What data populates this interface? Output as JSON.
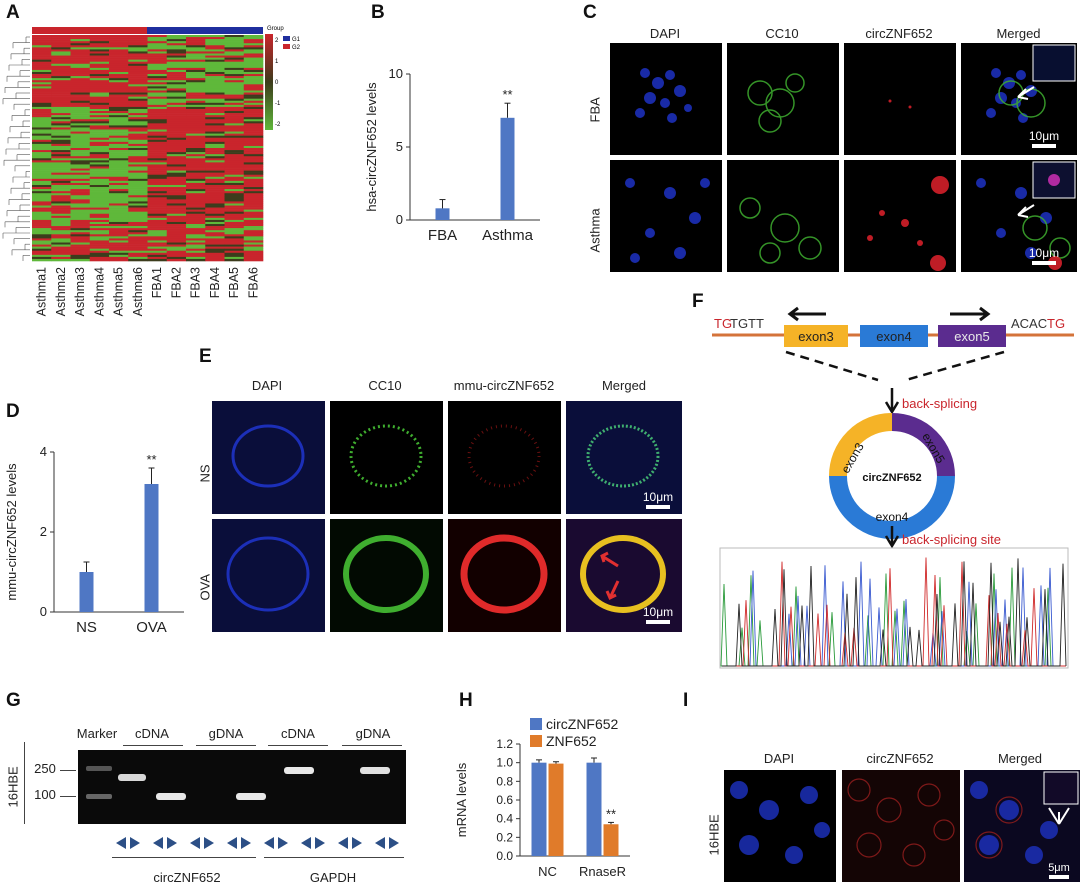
{
  "panels": {
    "A": "A",
    "B": "B",
    "C": "C",
    "D": "D",
    "E": "E",
    "F": "F",
    "G": "G",
    "H": "H",
    "I": "I"
  },
  "panelA": {
    "legend_title": "Group",
    "groups": [
      "G1",
      "G2"
    ],
    "colors": {
      "G1": "#1f2f9e",
      "G2": "#c9252c",
      "high": "#c9252c",
      "mid": "#3c3c1c",
      "low": "#5fb83a"
    },
    "scale_ticks": [
      "2",
      "1",
      "0",
      "-1",
      "-2"
    ],
    "samples": [
      "Asthma1",
      "Asthma2",
      "Asthma3",
      "Asthma4",
      "Asthma5",
      "Asthma6",
      "FBA1",
      "FBA2",
      "FBA3",
      "FBA4",
      "FBA5",
      "FBA6"
    ]
  },
  "panelC": {
    "headers": [
      "DAPI",
      "CC10",
      "circZNF652",
      "Merged"
    ],
    "rows": [
      "FBA",
      "Asthma"
    ],
    "scalebar": "10μm"
  },
  "panelE": {
    "headers": [
      "DAPI",
      "CC10",
      "mmu-circZNF652",
      "Merged"
    ],
    "rows": [
      "NS",
      "OVA"
    ],
    "scalebar": "10μm"
  },
  "panelF": {
    "left_seq_red": "TG",
    "left_seq_black": "TGTT",
    "right_seq_black": "ACAC",
    "right_seq_red": "TG",
    "exons": [
      "exon3",
      "exon4",
      "exon5"
    ],
    "exon_colors": {
      "exon3": "#f5b327",
      "exon4": "#2a7ad6",
      "exon5": "#5b2c8f"
    },
    "circle_label": "circZNF652",
    "back_splicing": "back-splicing",
    "back_splicing_site": "back-splicing site"
  },
  "panelG": {
    "cell": "16HBE",
    "marker": "Marker",
    "lanes": [
      "cDNA",
      "gDNA",
      "cDNA",
      "gDNA"
    ],
    "ladder": [
      "250",
      "100"
    ],
    "targets": [
      "circZNF652",
      "GAPDH"
    ]
  },
  "panelI": {
    "headers": [
      "DAPI",
      "circZNF652",
      "Merged"
    ],
    "row": "16HBE",
    "scalebar": "5μm"
  },
  "chart_data": [
    {
      "panel": "B",
      "type": "bar",
      "categories": [
        "FBA",
        "Asthma"
      ],
      "values": [
        0.8,
        7.0
      ],
      "errors": [
        0.6,
        1.0
      ],
      "annotations": [
        "",
        "**"
      ],
      "ylabel": "hsa-circZNF652 levels",
      "ylim": [
        0,
        10
      ],
      "yticks": [
        0,
        5,
        10
      ],
      "color": "#4f77c4"
    },
    {
      "panel": "D",
      "type": "bar",
      "categories": [
        "NS",
        "OVA"
      ],
      "values": [
        1.0,
        3.2
      ],
      "errors": [
        0.25,
        0.4
      ],
      "annotations": [
        "",
        "**"
      ],
      "ylabel": "mmu-circZNF652 levels",
      "ylim": [
        0,
        4
      ],
      "yticks": [
        0,
        2,
        4
      ],
      "color": "#4f77c4"
    },
    {
      "panel": "H",
      "type": "bar",
      "categories": [
        "NC",
        "RnaseR"
      ],
      "series": [
        {
          "name": "circZNF652",
          "values": [
            1.0,
            1.0
          ],
          "errors": [
            0.03,
            0.05
          ],
          "color": "#4f77c4"
        },
        {
          "name": "ZNF652",
          "values": [
            0.99,
            0.34
          ],
          "errors": [
            0.02,
            0.02
          ],
          "color": "#e07b2a"
        }
      ],
      "annotations": [
        "",
        "**"
      ],
      "ylabel": "mRNA levels",
      "ylim": [
        0,
        1.2
      ],
      "yticks": [
        "0.0",
        "0.2",
        "0.4",
        "0.6",
        "0.8",
        "1.0",
        "1.2"
      ],
      "legend": "top-left"
    }
  ]
}
